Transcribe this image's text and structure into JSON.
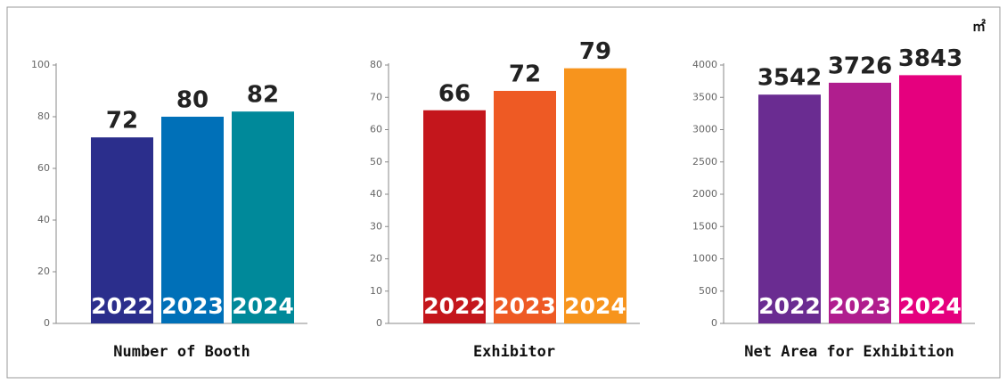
{
  "chart_data": [
    {
      "type": "bar",
      "title": "Number of Booth",
      "categories": [
        "2022",
        "2023",
        "2024"
      ],
      "values": [
        72,
        80,
        82
      ],
      "colors": [
        "#2b2e8c",
        "#0070b8",
        "#00899a"
      ],
      "ylim": [
        0,
        100
      ],
      "yticks": [
        0,
        20,
        40,
        60,
        80,
        100
      ]
    },
    {
      "type": "bar",
      "title": "Exhibitor",
      "categories": [
        "2022",
        "2023",
        "2024"
      ],
      "values": [
        66,
        72,
        79
      ],
      "colors": [
        "#c4161c",
        "#ee5a24",
        "#f7941d"
      ],
      "ylim": [
        0,
        80
      ],
      "yticks": [
        0,
        10,
        20,
        30,
        40,
        50,
        60,
        70,
        80
      ]
    },
    {
      "type": "bar",
      "title": "Net Area for Exhibition",
      "unit": "㎡",
      "categories": [
        "2022",
        "2023",
        "2024"
      ],
      "values": [
        3542,
        3726,
        3843
      ],
      "colors": [
        "#6a2c91",
        "#b01e8e",
        "#e5007e"
      ],
      "ylim": [
        0,
        4000
      ],
      "yticks": [
        0,
        500,
        1000,
        1500,
        2000,
        2500,
        3000,
        3500,
        4000
      ]
    }
  ]
}
